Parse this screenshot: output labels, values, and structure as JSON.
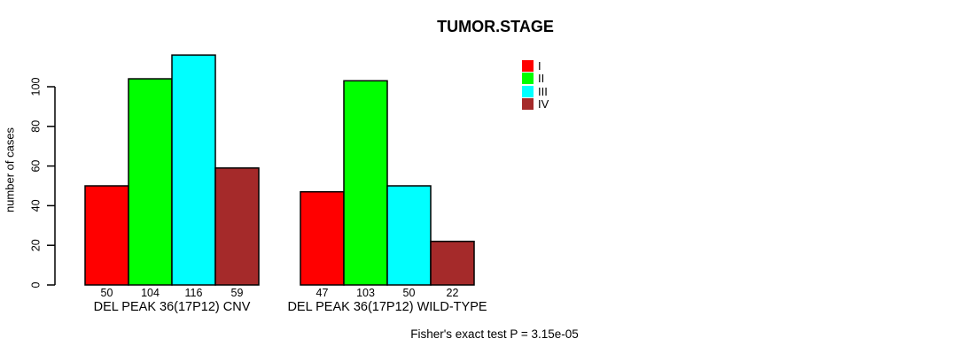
{
  "chart_data": {
    "type": "bar",
    "title": "TUMOR.STAGE",
    "ylabel": "number of cases",
    "xlabel": "",
    "ylim": [
      0,
      116
    ],
    "yticks": [
      0,
      20,
      40,
      60,
      80,
      100
    ],
    "grid": false,
    "legend_position": "top-right",
    "series_labels": [
      "I",
      "II",
      "III",
      "IV"
    ],
    "series_colors": [
      "#ff0000",
      "#00ff00",
      "#00ffff",
      "#a52a2a"
    ],
    "groups": [
      {
        "label": "DEL PEAK 36(17P12) CNV",
        "values": [
          50,
          104,
          116,
          59
        ]
      },
      {
        "label": "DEL PEAK 36(17P12) WILD-TYPE",
        "values": [
          47,
          103,
          50,
          22
        ]
      }
    ],
    "bar_value_labels_shown": true,
    "annotation": "Fisher's exact test P = 3.15e-05"
  }
}
